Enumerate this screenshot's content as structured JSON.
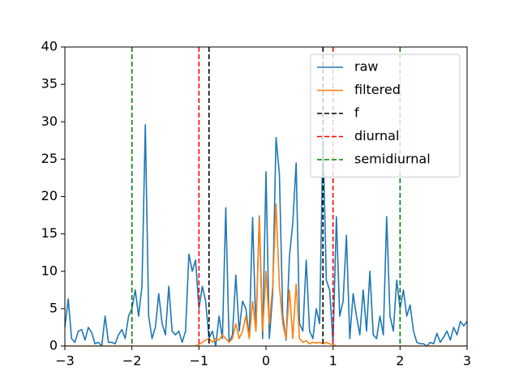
{
  "chart_data": {
    "type": "line",
    "x": [
      -3,
      -2.95,
      -2.9,
      -2.85,
      -2.8,
      -2.75,
      -2.7,
      -2.65,
      -2.6,
      -2.55,
      -2.5,
      -2.45,
      -2.4,
      -2.35,
      -2.3,
      -2.25,
      -2.2,
      -2.15,
      -2.1,
      -2.05,
      -2,
      -1.95,
      -1.9,
      -1.85,
      -1.8,
      -1.75,
      -1.7,
      -1.65,
      -1.6,
      -1.55,
      -1.5,
      -1.45,
      -1.4,
      -1.35,
      -1.3,
      -1.25,
      -1.2,
      -1.15,
      -1.1,
      -1.05,
      -1,
      -0.95,
      -0.9,
      -0.85,
      -0.8,
      -0.75,
      -0.7,
      -0.65,
      -0.6,
      -0.55,
      -0.5,
      -0.45,
      -0.4,
      -0.35,
      -0.3,
      -0.25,
      -0.2,
      -0.15,
      -0.1,
      -0.05,
      0,
      0.05,
      0.1,
      0.15,
      0.2,
      0.25,
      0.3,
      0.35,
      0.4,
      0.45,
      0.5,
      0.55,
      0.6,
      0.65,
      0.7,
      0.75,
      0.8,
      0.85,
      0.9,
      0.95,
      1,
      1.05,
      1.1,
      1.15,
      1.2,
      1.25,
      1.3,
      1.35,
      1.4,
      1.45,
      1.5,
      1.55,
      1.6,
      1.65,
      1.7,
      1.75,
      1.8,
      1.85,
      1.9,
      1.95,
      2,
      2.05,
      2.1,
      2.15,
      2.2,
      2.25,
      2.3,
      2.35,
      2.4,
      2.45,
      2.5,
      2.55,
      2.6,
      2.65,
      2.7,
      2.75,
      2.8,
      2.85,
      2.9,
      2.95,
      3
    ],
    "series": [
      {
        "name": "raw",
        "color": "#1f77b4",
        "values": [
          2.5,
          6.3,
          1,
          0.5,
          2,
          2.2,
          0.8,
          2.5,
          1.8,
          0.3,
          0.5,
          0,
          4,
          0.5,
          0.5,
          0.3,
          1.5,
          2.2,
          1,
          4,
          5,
          7.5,
          4,
          8,
          29.6,
          4,
          1,
          2.5,
          7,
          3,
          1.5,
          8,
          2,
          1.5,
          2,
          0.5,
          2,
          12.3,
          10,
          11.5,
          5,
          8,
          6,
          1,
          2,
          0,
          4,
          1,
          18.5,
          0.5,
          1.5,
          9.5,
          2,
          6,
          5,
          1.2,
          17.2,
          2,
          17.4,
          1,
          23.3,
          1,
          7,
          27.9,
          23,
          4,
          0.8,
          12,
          16.5,
          24.5,
          3,
          2,
          11.5,
          2,
          1,
          5,
          3,
          28,
          8.8,
          7.5,
          0.3,
          17.3,
          4,
          6,
          14.8,
          1,
          7,
          4,
          1.5,
          7.5,
          2,
          10,
          1.5,
          1,
          4,
          1.5,
          17.3,
          4,
          2,
          8.8,
          5,
          7.5,
          4,
          5.5,
          2,
          0.5,
          0.3,
          0.3,
          0,
          0.5,
          0.3,
          1.7,
          0.5,
          1.2,
          2,
          0.8,
          2.5,
          1.5,
          3.3,
          2.7,
          3.3
        ]
      },
      {
        "name": "filtered",
        "color": "#ff7f0e",
        "values": [
          0,
          0,
          0,
          0,
          0,
          0,
          0,
          0,
          0,
          0,
          0,
          0,
          0,
          0,
          0,
          0,
          0,
          0,
          0,
          0,
          0,
          0,
          0,
          0,
          0,
          0,
          0,
          0,
          0,
          0,
          0,
          0,
          0,
          0,
          0,
          0,
          0,
          0,
          0,
          0,
          0.2,
          0.5,
          0.8,
          1,
          0.5,
          1,
          0.8,
          1.5,
          1,
          0.5,
          1,
          3,
          1,
          2,
          4,
          1,
          6,
          2,
          17.2,
          2,
          10,
          3,
          8,
          19,
          8,
          3,
          1,
          7.5,
          1,
          8.3,
          1,
          0.5,
          0.7,
          0.3,
          0.5,
          0.4,
          0.5,
          0.3,
          0.5,
          0.3,
          0.2,
          0,
          0,
          0,
          0,
          0,
          0,
          0,
          0,
          0,
          0,
          0,
          0,
          0,
          0,
          0,
          0,
          0,
          0,
          0,
          0,
          0,
          0,
          0,
          0,
          0,
          0,
          0,
          0,
          0,
          0,
          0,
          0,
          0,
          0,
          0,
          0,
          0,
          0,
          0,
          0
        ]
      }
    ],
    "vlines": [
      {
        "name": "f",
        "color": "#000000",
        "x": [
          -0.85,
          0.85
        ]
      },
      {
        "name": "diurnal",
        "color": "#ff0000",
        "x": [
          -1,
          1
        ]
      },
      {
        "name": "semidiurnal",
        "color": "#008000",
        "x": [
          -2,
          2
        ]
      }
    ],
    "xlim": [
      -3,
      3
    ],
    "ylim": [
      0,
      40
    ],
    "xticks": [
      {
        "value": -3,
        "label": "−3"
      },
      {
        "value": -2,
        "label": "−2"
      },
      {
        "value": -1,
        "label": "−1"
      },
      0,
      1,
      2,
      3
    ],
    "yticks": [
      0,
      5,
      10,
      15,
      20,
      25,
      30,
      35,
      40
    ],
    "legend": "upper right"
  }
}
